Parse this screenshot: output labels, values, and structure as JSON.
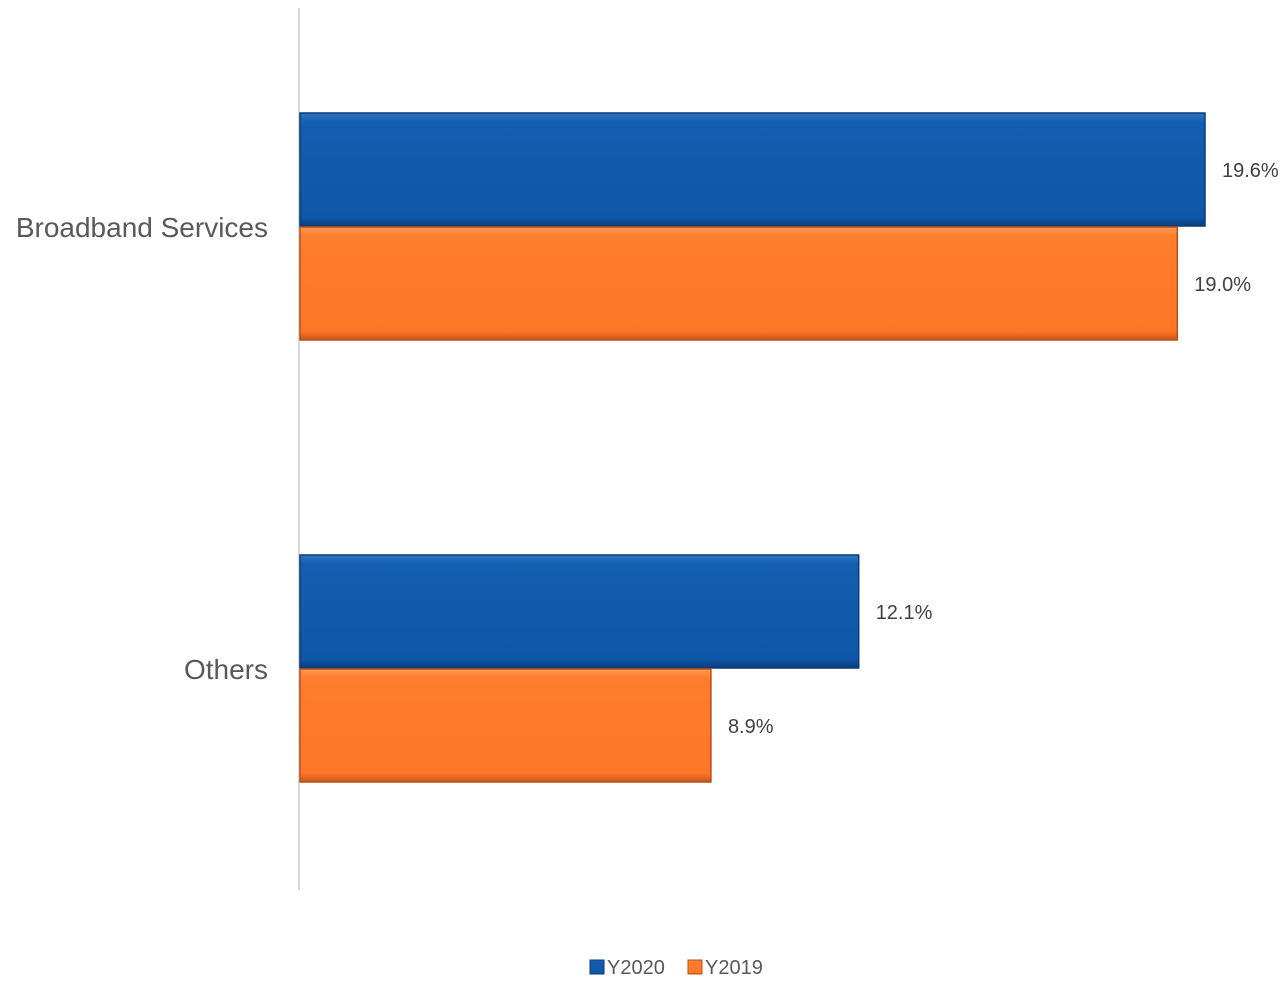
{
  "chart_data": {
    "type": "bar",
    "orientation": "horizontal",
    "categories": [
      "Broadband Services",
      "Others"
    ],
    "series": [
      {
        "name": "Y2020",
        "color": "#0f5aab",
        "values": [
          19.6,
          12.1
        ],
        "labels": [
          "19.6%",
          "12.1%"
        ]
      },
      {
        "name": "Y2019",
        "color": "#ff7a2a",
        "values": [
          19.0,
          8.9
        ],
        "labels": [
          "19.0%",
          "8.9%"
        ]
      }
    ],
    "value_unit": "%",
    "xlim": [
      0,
      20
    ],
    "title": "",
    "xlabel": "",
    "ylabel": "",
    "grid": false,
    "legend_position": "bottom"
  }
}
